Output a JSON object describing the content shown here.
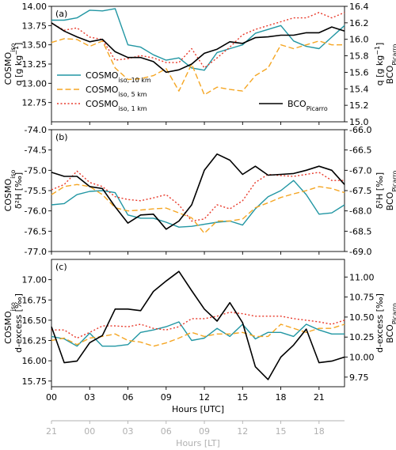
{
  "chart_data": [
    {
      "type": "line",
      "panel_label": "(a)",
      "x": [
        0,
        1,
        2,
        3,
        4,
        5,
        6,
        7,
        8,
        9,
        10,
        11,
        12,
        13,
        14,
        15,
        16,
        17,
        18,
        19,
        20,
        21,
        22,
        23
      ],
      "ylabel_left": {
        "main": "COSMO",
        "sub": "iso",
        "line2": "q [g kg",
        "sup": "−1",
        "close": "]"
      },
      "ylabel_right": {
        "line1": "q [g kg",
        "sup": "−1",
        "close": "]",
        "main": "BCO",
        "sub": "Picarro"
      },
      "ylim_left": [
        12.5,
        14.0
      ],
      "ylim_right": [
        15.0,
        16.4
      ],
      "yticks_left": [
        "12.75",
        "13.00",
        "13.25",
        "13.50",
        "13.75",
        "14.00"
      ],
      "ytick_values_left": [
        12.75,
        13.0,
        13.25,
        13.5,
        13.75,
        14.0
      ],
      "yticks_right": [
        "15.0",
        "15.2",
        "15.4",
        "15.6",
        "15.8",
        "16.0",
        "16.2",
        "16.4"
      ],
      "ytick_values_right": [
        15.0,
        15.2,
        15.4,
        15.6,
        15.8,
        16.0,
        16.2,
        16.4
      ],
      "series": [
        {
          "key": "cosmo10",
          "axis": "left",
          "values": [
            13.82,
            13.82,
            13.85,
            13.95,
            13.94,
            13.97,
            13.5,
            13.47,
            13.37,
            13.3,
            13.33,
            13.2,
            13.17,
            13.4,
            13.45,
            13.5,
            13.65,
            13.7,
            13.75,
            13.55,
            13.48,
            13.45,
            13.6,
            13.75
          ]
        },
        {
          "key": "cosmo5",
          "axis": "left",
          "values": [
            13.53,
            13.58,
            13.57,
            13.48,
            13.55,
            13.2,
            13.05,
            13.06,
            13.1,
            13.19,
            12.9,
            13.25,
            12.85,
            12.95,
            12.92,
            12.9,
            13.1,
            13.2,
            13.5,
            13.45,
            13.5,
            13.55,
            13.5,
            13.5
          ]
        },
        {
          "key": "cosmo1",
          "axis": "left",
          "values": [
            13.78,
            13.69,
            13.72,
            13.6,
            13.57,
            13.3,
            13.32,
            13.36,
            13.33,
            13.27,
            13.27,
            13.45,
            13.2,
            13.33,
            13.47,
            13.63,
            13.7,
            13.75,
            13.8,
            13.85,
            13.85,
            13.92,
            13.85,
            13.92
          ]
        },
        {
          "key": "bco",
          "axis": "right",
          "values": [
            16.2,
            16.1,
            16.03,
            15.97,
            16.0,
            15.85,
            15.78,
            15.78,
            15.73,
            15.6,
            15.63,
            15.7,
            15.83,
            15.88,
            15.97,
            15.95,
            16.02,
            16.03,
            16.05,
            16.05,
            16.08,
            16.08,
            16.15,
            16.1
          ]
        }
      ]
    },
    {
      "type": "line",
      "panel_label": "(b)",
      "x": [
        0,
        1,
        2,
        3,
        4,
        5,
        6,
        7,
        8,
        9,
        10,
        11,
        12,
        13,
        14,
        15,
        16,
        17,
        18,
        19,
        20,
        21,
        22,
        23
      ],
      "ylabel_left": {
        "main": "COSMO",
        "sub": "iso",
        "line2": "δ²H [‰]"
      },
      "ylabel_right": {
        "line1": "δ²H [‰]",
        "main": "BCO",
        "sub": "Picarro"
      },
      "ylim_left": [
        -77.0,
        -74.0
      ],
      "ylim_right": [
        -69.0,
        -66.0
      ],
      "yticks_left": [
        "-77.0",
        "-76.5",
        "-76.0",
        "-75.5",
        "-75.0",
        "-74.5",
        "-74.0"
      ],
      "ytick_values_left": [
        -77.0,
        -76.5,
        -76.0,
        -75.5,
        -75.0,
        -74.5,
        -74.0
      ],
      "yticks_right": [
        "-69.0",
        "-68.5",
        "-68.0",
        "-67.5",
        "-67.0",
        "-66.5",
        "-66.0"
      ],
      "ytick_values_right": [
        -69.0,
        -68.5,
        -68.0,
        -67.5,
        -67.0,
        -66.5,
        -66.0
      ],
      "series": [
        {
          "key": "cosmo10",
          "axis": "left",
          "values": [
            -75.85,
            -75.82,
            -75.6,
            -75.52,
            -75.5,
            -75.55,
            -76.1,
            -76.18,
            -76.18,
            -76.28,
            -76.4,
            -76.38,
            -76.33,
            -76.28,
            -76.25,
            -76.35,
            -75.95,
            -75.65,
            -75.5,
            -75.25,
            -75.6,
            -76.08,
            -76.05,
            -75.85
          ]
        },
        {
          "key": "cosmo5",
          "axis": "left",
          "values": [
            -75.6,
            -75.4,
            -75.35,
            -75.4,
            -75.6,
            -75.92,
            -76.0,
            -75.98,
            -75.95,
            -75.93,
            -76.05,
            -76.17,
            -76.55,
            -76.25,
            -76.25,
            -76.2,
            -75.92,
            -75.8,
            -75.67,
            -75.58,
            -75.5,
            -75.4,
            -75.45,
            -75.55
          ]
        },
        {
          "key": "cosmo1",
          "axis": "left",
          "values": [
            -75.48,
            -75.35,
            -75.02,
            -75.3,
            -75.4,
            -75.65,
            -75.72,
            -75.75,
            -75.68,
            -75.6,
            -75.85,
            -76.25,
            -76.2,
            -75.85,
            -75.95,
            -75.75,
            -75.3,
            -75.1,
            -75.13,
            -75.15,
            -75.1,
            -75.05,
            -75.25,
            -75.25
          ]
        },
        {
          "key": "bco",
          "axis": "right",
          "values": [
            -67.05,
            -67.15,
            -67.15,
            -67.4,
            -67.45,
            -67.9,
            -68.3,
            -68.1,
            -68.08,
            -68.45,
            -68.25,
            -67.85,
            -67.0,
            -66.6,
            -66.75,
            -67.1,
            -66.9,
            -67.12,
            -67.1,
            -67.08,
            -67.0,
            -66.9,
            -67.0,
            -67.35
          ]
        }
      ]
    },
    {
      "type": "line",
      "panel_label": "(c)",
      "x": [
        0,
        1,
        2,
        3,
        4,
        5,
        6,
        7,
        8,
        9,
        10,
        11,
        12,
        13,
        14,
        15,
        16,
        17,
        18,
        19,
        20,
        21,
        22,
        23
      ],
      "ylabel_left": {
        "main": "COSMO",
        "sub": "iso",
        "line2": "d-excess [‰]"
      },
      "ylabel_right": {
        "line1": "d-excess [‰]",
        "main": "BCO",
        "sub": "Picarro"
      },
      "ylim_left": [
        15.68,
        17.25
      ],
      "ylim_right": [
        9.63,
        11.22
      ],
      "yticks_left": [
        "15.75",
        "16.00",
        "16.25",
        "16.50",
        "16.75",
        "17.00"
      ],
      "ytick_values_left": [
        15.75,
        16.0,
        16.25,
        16.5,
        16.75,
        17.0
      ],
      "yticks_right": [
        "9.75",
        "10.00",
        "10.25",
        "10.50",
        "10.75",
        "11.00"
      ],
      "ytick_values_right": [
        9.75,
        10.0,
        10.25,
        10.5,
        10.75,
        11.0
      ],
      "series": [
        {
          "key": "cosmo10",
          "axis": "left",
          "values": [
            16.3,
            16.27,
            16.18,
            16.34,
            16.18,
            16.18,
            16.2,
            16.35,
            16.38,
            16.42,
            16.48,
            16.25,
            16.28,
            16.4,
            16.3,
            16.45,
            16.27,
            16.35,
            16.35,
            16.3,
            16.45,
            16.38,
            16.33,
            16.33
          ]
        },
        {
          "key": "cosmo5",
          "axis": "left",
          "values": [
            16.25,
            16.28,
            16.2,
            16.28,
            16.3,
            16.33,
            16.25,
            16.23,
            16.18,
            16.22,
            16.28,
            16.35,
            16.3,
            16.33,
            16.33,
            16.35,
            16.3,
            16.3,
            16.45,
            16.4,
            16.35,
            16.4,
            16.4,
            16.45
          ]
        },
        {
          "key": "cosmo1",
          "axis": "left",
          "values": [
            16.38,
            16.38,
            16.28,
            16.35,
            16.43,
            16.43,
            16.42,
            16.45,
            16.4,
            16.38,
            16.42,
            16.52,
            16.52,
            16.55,
            16.6,
            16.58,
            16.55,
            16.55,
            16.55,
            16.52,
            16.5,
            16.48,
            16.45,
            16.5
          ]
        },
        {
          "key": "bco",
          "axis": "right",
          "values": [
            10.38,
            9.93,
            9.95,
            10.18,
            10.27,
            10.6,
            10.6,
            10.58,
            10.82,
            10.95,
            11.07,
            10.83,
            10.6,
            10.45,
            10.68,
            10.43,
            9.88,
            9.72,
            10.0,
            10.15,
            10.35,
            9.93,
            9.95,
            10.0
          ]
        }
      ]
    }
  ],
  "legend": {
    "cosmo10": {
      "main": "COSMO",
      "sub": "iso, 10 km"
    },
    "cosmo5": {
      "main": "COSMO",
      "sub": "iso, 5 km"
    },
    "cosmo1": {
      "main": "COSMO",
      "sub": "iso, 1 km"
    },
    "bco": {
      "main": "BCO",
      "sub": "Picarro"
    }
  },
  "colors": {
    "cosmo10": "#2196a3",
    "cosmo5": "#f5a623",
    "cosmo1": "#e8392a",
    "bco": "#000000",
    "lt_axis": "#b0b0b0"
  },
  "x_axis": {
    "label": "Hours [UTC]",
    "ticks": [
      "00",
      "03",
      "06",
      "09",
      "12",
      "15",
      "18",
      "21"
    ],
    "tick_values": [
      0,
      3,
      6,
      9,
      12,
      15,
      18,
      21
    ],
    "xlim": [
      0,
      23
    ]
  },
  "lt_axis": {
    "label": "Hours [LT]",
    "ticks": [
      "21",
      "00",
      "03",
      "06",
      "09",
      "12",
      "15",
      "18"
    ]
  }
}
